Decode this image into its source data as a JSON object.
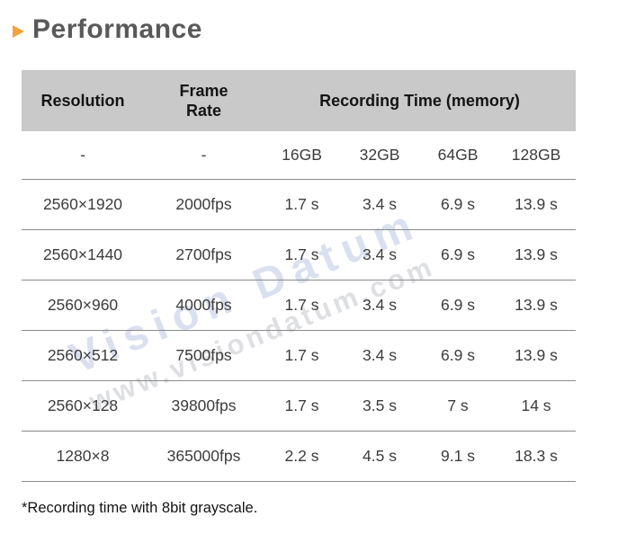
{
  "title": {
    "text": "Performance"
  },
  "table": {
    "header": {
      "resolution": "Resolution",
      "frame_rate": "Frame Rate",
      "recording_time": "Recording Time (memory)"
    },
    "subheader": [
      "-",
      "-",
      "16GB",
      "32GB",
      "64GB",
      "128GB"
    ],
    "rows": [
      [
        "2560×1920",
        "2000fps",
        "1.7 s",
        "3.4 s",
        "6.9 s",
        "13.9 s"
      ],
      [
        "2560×1440",
        "2700fps",
        "1.7 s",
        "3.4 s",
        "6.9 s",
        "13.9 s"
      ],
      [
        "2560×960",
        "4000fps",
        "1.7 s",
        "3.4 s",
        "6.9 s",
        "13.9 s"
      ],
      [
        "2560×512",
        "7500fps",
        "1.7 s",
        "3.4 s",
        "6.9 s",
        "13.9 s"
      ],
      [
        "2560×128",
        "39800fps",
        "1.7 s",
        "3.5 s",
        "7 s",
        "14 s"
      ],
      [
        "1280×8",
        "365000fps",
        "2.2 s",
        "4.5 s",
        "9.1 s",
        "18.3 s"
      ]
    ]
  },
  "watermark": {
    "line1": "Vision Datum",
    "line2": "www.visiondatum.com"
  },
  "footnote": "*Recording time with 8bit grayscale.",
  "colors": {
    "accent_orange": "#F5A23C",
    "header_background": "#C9C9C9",
    "title_gray": "#595959",
    "row_line_gray": "#8A8A8A"
  }
}
